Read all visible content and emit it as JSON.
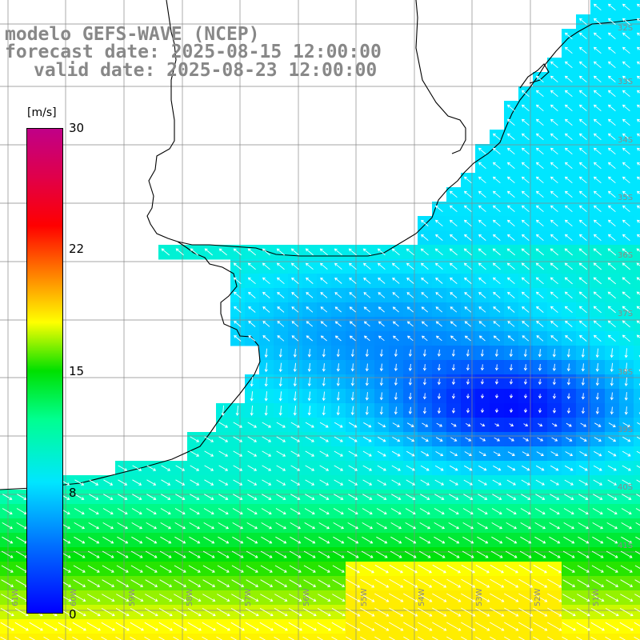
{
  "title": {
    "line1": "modelo GEFS-WAVE (NCEP)",
    "line2": "forecast date: 2025-08-15 12:00:00",
    "line3": "valid date: 2025-08-23 12:00:00"
  },
  "colorbar": {
    "units": "[m/s]",
    "ticks": [
      "30",
      "22",
      "15",
      "8",
      "0"
    ],
    "colors": [
      "#0000ff",
      "#0070ff",
      "#00e6ff",
      "#00ff90",
      "#00e000",
      "#ffff00",
      "#ff8000",
      "#ff0000",
      "#e0004a",
      "#c00088"
    ]
  },
  "lat_labels": [
    "32S",
    "33S",
    "34S",
    "35S",
    "36S",
    "37S",
    "38S",
    "39S",
    "40S",
    "41S"
  ],
  "lon_labels": [
    "61W",
    "60W",
    "59W",
    "58W",
    "57W",
    "56W",
    "55W",
    "54W",
    "53W",
    "52W",
    "51W"
  ],
  "colors": {
    "land": "#ffffff",
    "coast": "#000000",
    "grid": "#888888",
    "arrow": "#ffffff"
  }
}
